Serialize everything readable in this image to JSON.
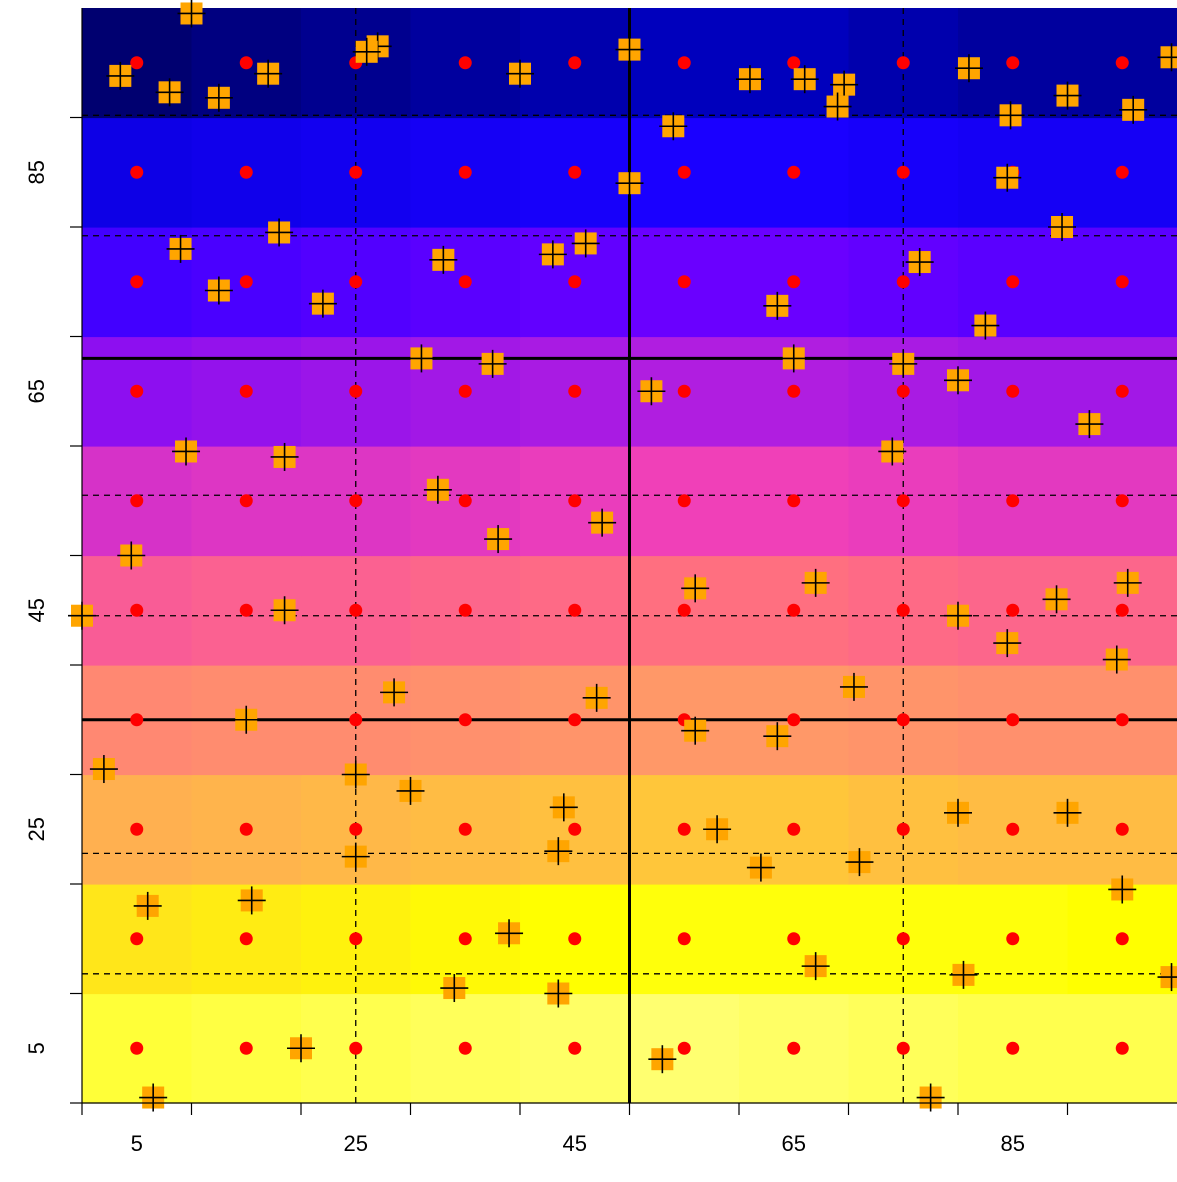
{
  "chart_data": {
    "type": "scatter",
    "title": "",
    "xlabel": "",
    "ylabel": "",
    "xlim": [
      0,
      100
    ],
    "ylim": [
      0,
      100
    ],
    "x_ticks": [
      0,
      10,
      20,
      30,
      40,
      50,
      60,
      70,
      80,
      90
    ],
    "x_tick_labels": [
      "5",
      "25",
      "45",
      "65",
      "85"
    ],
    "x_tick_label_values": [
      5,
      25,
      45,
      65,
      85
    ],
    "y_ticks": [
      0,
      10,
      20,
      30,
      40,
      50,
      60,
      70,
      80,
      90
    ],
    "y_tick_labels": [
      "5",
      "25",
      "45",
      "65",
      "85"
    ],
    "y_tick_label_values": [
      5,
      25,
      45,
      65,
      85
    ],
    "background": {
      "type": "heatmap",
      "row_edges": [
        0,
        10,
        20,
        30,
        40,
        50,
        60,
        70,
        80,
        90,
        100
      ],
      "col_edges": [
        0,
        10,
        20,
        30,
        40,
        50,
        60,
        70,
        80,
        90,
        100
      ],
      "levels": [
        [
          0.95,
          0.96,
          0.97,
          0.98,
          0.99,
          1.0,
          0.99,
          0.98,
          0.97,
          0.97
        ],
        [
          0.86,
          0.87,
          0.88,
          0.89,
          0.9,
          0.91,
          0.91,
          0.91,
          0.91,
          0.9
        ],
        [
          0.76,
          0.77,
          0.78,
          0.79,
          0.8,
          0.81,
          0.81,
          0.8,
          0.79,
          0.79
        ],
        [
          0.66,
          0.67,
          0.67,
          0.68,
          0.69,
          0.7,
          0.7,
          0.69,
          0.68,
          0.68
        ],
        [
          0.56,
          0.57,
          0.57,
          0.58,
          0.59,
          0.6,
          0.6,
          0.59,
          0.58,
          0.58
        ],
        [
          0.46,
          0.47,
          0.47,
          0.48,
          0.49,
          0.5,
          0.5,
          0.49,
          0.48,
          0.48
        ],
        [
          0.35,
          0.36,
          0.37,
          0.38,
          0.39,
          0.4,
          0.4,
          0.39,
          0.38,
          0.38
        ],
        [
          0.25,
          0.26,
          0.27,
          0.28,
          0.29,
          0.3,
          0.3,
          0.29,
          0.28,
          0.28
        ],
        [
          0.15,
          0.16,
          0.17,
          0.18,
          0.19,
          0.2,
          0.2,
          0.19,
          0.18,
          0.18
        ],
        [
          0.04,
          0.05,
          0.06,
          0.07,
          0.08,
          0.09,
          0.09,
          0.08,
          0.07,
          0.07
        ]
      ],
      "colormap": [
        "#000033",
        "#0000cc",
        "#1a00ff",
        "#6a00ff",
        "#b01ee0",
        "#f040b8",
        "#ff6f80",
        "#ff9868",
        "#ffc040",
        "#ffff00",
        "#ffff70"
      ]
    },
    "vertical_lines_solid": [
      50
    ],
    "horizontal_lines_solid": [
      35,
      68
    ],
    "vertical_lines_dashed": [
      25,
      75
    ],
    "horizontal_lines_dashed": [
      11.8,
      22.8,
      44.5,
      55.5,
      79.2,
      90.2
    ],
    "series": [
      {
        "marker": "red-dot",
        "color": "#ff0000",
        "x_values": [
          5,
          15,
          25,
          35,
          45,
          55,
          65,
          75,
          85,
          95
        ],
        "y_values": [
          5,
          15,
          25,
          35,
          45,
          55,
          65,
          75,
          85,
          95
        ]
      },
      {
        "marker": "orange-square-with-plus",
        "color": "#ffa500",
        "points": [
          [
            99.5,
            95.5
          ],
          [
            96.0,
            90.7
          ],
          [
            84.8,
            90.2
          ],
          [
            76.5,
            76.8
          ],
          [
            74.0,
            59.5
          ],
          [
            61.0,
            93.5
          ],
          [
            69.6,
            93.0
          ],
          [
            50.0,
            96.2
          ],
          [
            54.0,
            89.2
          ],
          [
            46.0,
            78.5
          ],
          [
            50.0,
            84.0
          ],
          [
            63.5,
            72.8
          ],
          [
            75.0,
            67.5
          ],
          [
            80.0,
            66.0
          ],
          [
            92.0,
            62.0
          ],
          [
            95.5,
            47.5
          ],
          [
            84.5,
            84.5
          ],
          [
            89.5,
            80.0
          ],
          [
            90.0,
            92.0
          ],
          [
            81.0,
            94.5
          ],
          [
            27.0,
            96.5
          ],
          [
            17.0,
            94.0
          ],
          [
            12.5,
            91.8
          ],
          [
            8.0,
            92.3
          ],
          [
            3.5,
            93.8
          ],
          [
            9.0,
            78.0
          ],
          [
            33.0,
            77.0
          ],
          [
            43.0,
            77.5
          ],
          [
            18.0,
            79.5
          ],
          [
            12.5,
            74.2
          ],
          [
            22.0,
            73.0
          ],
          [
            31.0,
            68.0
          ],
          [
            37.5,
            67.5
          ],
          [
            52.0,
            65.0
          ],
          [
            65.0,
            68.0
          ],
          [
            82.5,
            71.0
          ],
          [
            69.0,
            91.0
          ],
          [
            66.0,
            93.5
          ],
          [
            40.0,
            94.0
          ],
          [
            10.0,
            99.5
          ],
          [
            9.5,
            59.5
          ],
          [
            18.5,
            59.0
          ],
          [
            32.5,
            56.0
          ],
          [
            38.0,
            51.5
          ],
          [
            47.5,
            53.0
          ],
          [
            4.5,
            50.0
          ],
          [
            0.0,
            44.5
          ],
          [
            18.5,
            45.0
          ],
          [
            56.0,
            47.0
          ],
          [
            67.0,
            47.5
          ],
          [
            89.0,
            46.0
          ],
          [
            80.0,
            44.5
          ],
          [
            84.5,
            42.0
          ],
          [
            94.5,
            40.5
          ],
          [
            70.5,
            38.0
          ],
          [
            15.0,
            35.0
          ],
          [
            28.5,
            37.5
          ],
          [
            47.0,
            37.0
          ],
          [
            56.0,
            34.0
          ],
          [
            63.5,
            33.5
          ],
          [
            2.0,
            30.5
          ],
          [
            25.0,
            30.0
          ],
          [
            30.0,
            28.5
          ],
          [
            44.0,
            27.0
          ],
          [
            58.0,
            25.0
          ],
          [
            80.0,
            26.5
          ],
          [
            90.0,
            26.5
          ],
          [
            25.0,
            22.5
          ],
          [
            43.5,
            23.0
          ],
          [
            62.0,
            21.5
          ],
          [
            71.0,
            22.0
          ],
          [
            95.0,
            19.5
          ],
          [
            6.0,
            18.0
          ],
          [
            15.5,
            18.5
          ],
          [
            39.0,
            15.5
          ],
          [
            67.0,
            12.5
          ],
          [
            80.5,
            11.7
          ],
          [
            99.5,
            11.5
          ],
          [
            34.0,
            10.5
          ],
          [
            43.5,
            10.0
          ],
          [
            20.0,
            5.0
          ],
          [
            53.0,
            4.0
          ],
          [
            6.5,
            0.5
          ],
          [
            77.5,
            0.5
          ],
          [
            26.0,
            96.0
          ]
        ]
      }
    ]
  }
}
